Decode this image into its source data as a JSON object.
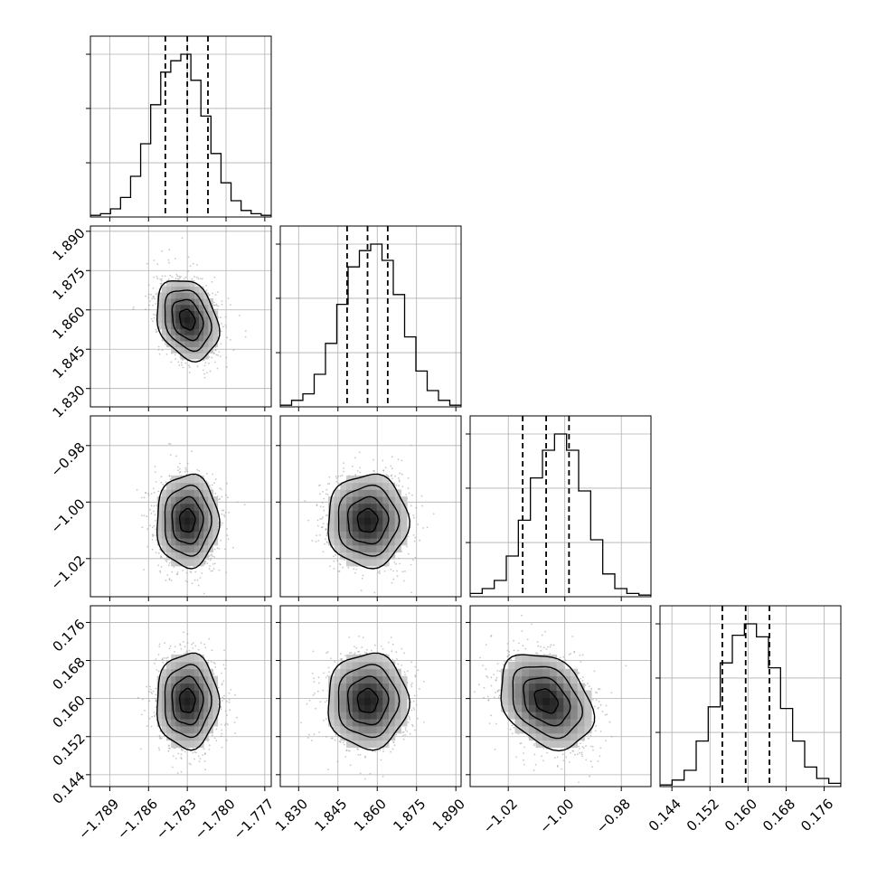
{
  "chart_data": {
    "type": "scatter",
    "subtype": "corner-plot",
    "parameters": [
      {
        "range": [
          -1.7905,
          -1.7765
        ],
        "ticks": [
          -1.789,
          -1.786,
          -1.783,
          -1.78,
          -1.777
        ],
        "tick_labels": [
          "−1.789",
          "−1.786",
          "−1.783",
          "−1.780",
          "−1.777"
        ],
        "quantiles": [
          -1.7847,
          -1.783,
          -1.7814
        ],
        "mean": -1.783,
        "sd": 0.0012,
        "hist": [
          0.01,
          0.02,
          0.05,
          0.12,
          0.25,
          0.45,
          0.69,
          0.89,
          0.96,
          1.0,
          0.84,
          0.62,
          0.39,
          0.21,
          0.1,
          0.04,
          0.02,
          0.01
        ]
      },
      {
        "range": [
          1.823,
          1.892
        ],
        "ticks": [
          1.83,
          1.845,
          1.86,
          1.875,
          1.89
        ],
        "tick_labels": [
          "1.830",
          "1.845",
          "1.860",
          "1.875",
          "1.890"
        ],
        "quantiles": [
          1.8485,
          1.8563,
          1.864
        ],
        "mean": 1.8563,
        "sd": 0.0077,
        "hist": [
          0.01,
          0.04,
          0.08,
          0.2,
          0.39,
          0.63,
          0.86,
          0.96,
          1.0,
          0.9,
          0.69,
          0.43,
          0.22,
          0.1,
          0.04,
          0.01
        ]
      },
      {
        "range": [
          -1.0335,
          -0.9695
        ],
        "ticks": [
          -1.02,
          -1.0,
          -0.98
        ],
        "tick_labels": [
          "−1.02",
          "−1.00",
          "−0.98"
        ],
        "quantiles": [
          -1.0149,
          -1.0066,
          -0.9985
        ],
        "mean": -1.0066,
        "sd": 0.0082,
        "hist": [
          0.02,
          0.05,
          0.1,
          0.25,
          0.47,
          0.73,
          0.9,
          1.0,
          0.9,
          0.65,
          0.35,
          0.14,
          0.05,
          0.02,
          0.01
        ]
      },
      {
        "range": [
          0.1415,
          0.1795
        ],
        "ticks": [
          0.144,
          0.152,
          0.16,
          0.168,
          0.176
        ],
        "tick_labels": [
          "0.144",
          "0.152",
          "0.160",
          "0.168",
          "0.176"
        ],
        "quantiles": [
          0.1546,
          0.1595,
          0.1645
        ],
        "mean": 0.1595,
        "sd": 0.005,
        "hist": [
          0.01,
          0.04,
          0.1,
          0.28,
          0.49,
          0.76,
          0.93,
          1.0,
          0.92,
          0.73,
          0.48,
          0.28,
          0.12,
          0.05,
          0.02
        ]
      }
    ],
    "correlations": {
      "0-1": -0.25,
      "0-2": 0.0,
      "0-3": 0.0,
      "1-2": 0.0,
      "1-3": 0.0,
      "2-3": -0.3
    },
    "contour_levels_sigma": [
      0.5,
      1.0,
      1.5,
      2.0
    ],
    "grid": true,
    "colors": {
      "line": "#000000",
      "points": "#9a9a9a",
      "grid": "#b0b0b0"
    }
  }
}
